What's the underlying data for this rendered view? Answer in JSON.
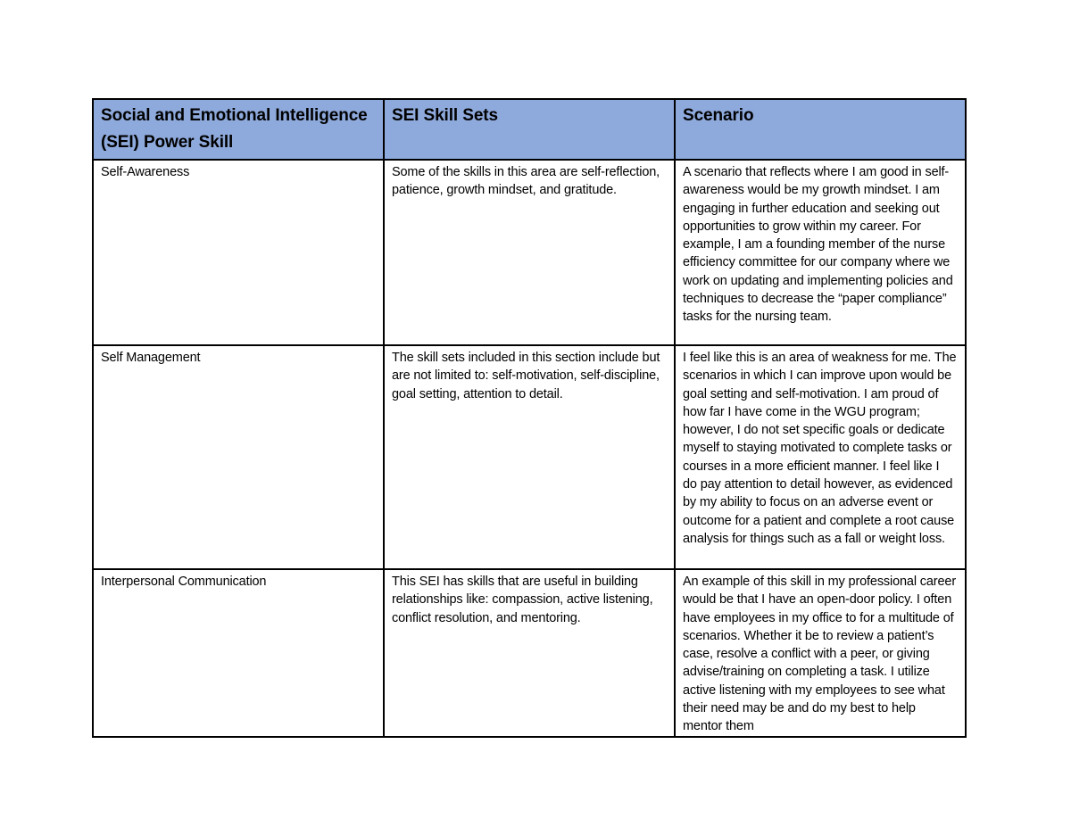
{
  "page": {
    "background_color": "#ffffff",
    "table_border_color": "#000000",
    "header_bg_color": "#8EA9DB",
    "text_color": "#000000"
  },
  "table": {
    "columns": [
      "Social and Emotional Intelligence (SEI) Power Skill",
      "SEI Skill Sets",
      "Scenario"
    ],
    "rows": [
      {
        "skill": "Self-Awareness",
        "skill_sets": "Some of the skills in this area are self-reflection, patience, growth mindset, and gratitude.",
        "scenario": "A scenario that reflects where I am good in self-awareness would be my growth mindset. I am engaging in further education and seeking out opportunities to grow within my career. For example, I am a founding member of the nurse efficiency committee for our company where we work on updating and implementing policies and techniques to decrease the “paper compliance” tasks for the nursing team."
      },
      {
        "skill": "Self Management",
        "skill_sets": "The skill sets included in this section include but are not limited to: self-motivation, self-discipline, goal setting, attention to detail.",
        "scenario": "I feel like this is an area of weakness for me. The scenarios in which I can improve upon would be goal setting and self-motivation. I am proud of how far I have come in the WGU program; however, I do not set specific goals or dedicate myself to staying motivated to complete tasks or courses in a more efficient manner. I feel like I do pay attention to detail however, as evidenced by my ability to focus on an adverse event or outcome for a patient and complete a root cause analysis for things such as a fall or weight loss."
      },
      {
        "skill": "Interpersonal Communication",
        "skill_sets": "This SEI has skills that are useful in building relationships like: compassion, active listening, conflict resolution, and mentoring.",
        "scenario": "An example of this skill in my professional career would be that I have an open-door policy. I often have employees in my office to for a multitude of scenarios. Whether it be to review a patient’s case, resolve a conflict with a peer, or giving advise/training on completing a task. I utilize active listening with my employees to see what their need may be and do my best to help mentor them"
      }
    ]
  }
}
